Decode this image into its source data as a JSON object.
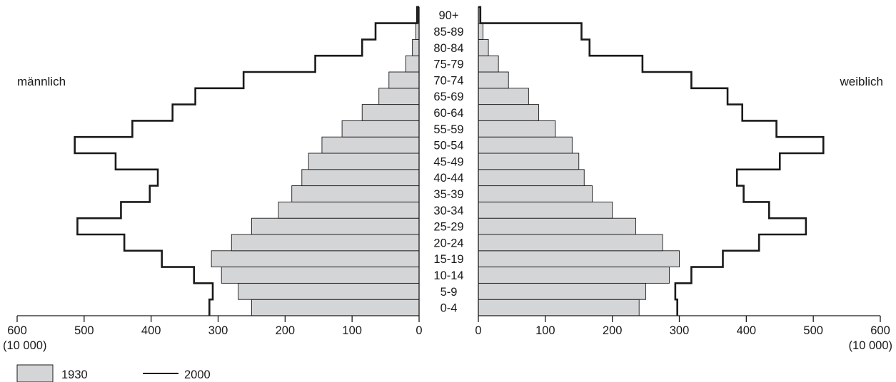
{
  "chart_data": {
    "type": "population-pyramid",
    "left_label": "männlich",
    "right_label": "weiblich",
    "age_groups": [
      "0-4",
      "5-9",
      "10-14",
      "15-19",
      "20-24",
      "25-29",
      "30-34",
      "35-39",
      "40-44",
      "45-49",
      "50-54",
      "55-59",
      "60-64",
      "65-69",
      "70-74",
      "75-79",
      "80-84",
      "85-89",
      "90+"
    ],
    "x_ticks": [
      "600",
      "500",
      "400",
      "300",
      "200",
      "100",
      "0"
    ],
    "x_ticks_right": [
      "0",
      "100",
      "200",
      "300",
      "400",
      "500",
      "600"
    ],
    "x_unit": "(10 000)",
    "xlim": [
      0,
      600
    ],
    "series": [
      {
        "name": "1930",
        "style": "filled-gray",
        "color": "#d4d5d7",
        "male": [
          250,
          270,
          295,
          310,
          280,
          250,
          210,
          190,
          175,
          165,
          145,
          115,
          85,
          60,
          45,
          20,
          10,
          5,
          1
        ],
        "female": [
          240,
          250,
          285,
          300,
          275,
          235,
          200,
          170,
          158,
          150,
          140,
          115,
          90,
          75,
          45,
          30,
          15,
          7,
          2
        ]
      },
      {
        "name": "2000",
        "style": "outline",
        "color": "#1a1a1a",
        "male": [
          313,
          308,
          336,
          384,
          440,
          510,
          445,
          402,
          390,
          453,
          514,
          428,
          368,
          334,
          262,
          155,
          85,
          65,
          3
        ],
        "female": [
          297,
          294,
          318,
          365,
          419,
          489,
          434,
          396,
          386,
          450,
          515,
          445,
          394,
          372,
          318,
          245,
          166,
          154,
          3
        ]
      }
    ]
  }
}
